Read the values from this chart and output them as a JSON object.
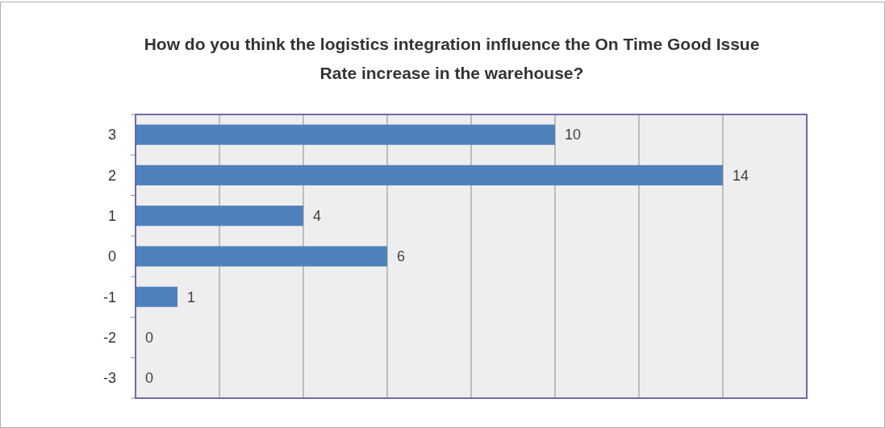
{
  "chart_data": {
    "type": "bar",
    "orientation": "horizontal",
    "title": "How do you think the logistics integration influence the On Time Good Issue Rate increase in the warehouse?",
    "categories": [
      "3",
      "2",
      "1",
      "0",
      "-1",
      "-2",
      "-3"
    ],
    "values": [
      10,
      14,
      4,
      6,
      1,
      0,
      0
    ],
    "color": "#4f81bd",
    "xlim": [
      0,
      16
    ],
    "xticks": [
      {
        "value": 0,
        "label": null
      },
      {
        "value": 2,
        "label": null
      },
      {
        "value": 4,
        "label": null
      },
      {
        "value": 6,
        "label": null
      },
      {
        "value": 8,
        "label": null
      },
      {
        "value": 10,
        "label": null
      },
      {
        "value": 12,
        "label": null
      },
      {
        "value": 14,
        "label": null
      },
      {
        "value": 16,
        "label": null
      }
    ],
    "grid": "x",
    "tick_labels": "y",
    "data_labels": true
  }
}
